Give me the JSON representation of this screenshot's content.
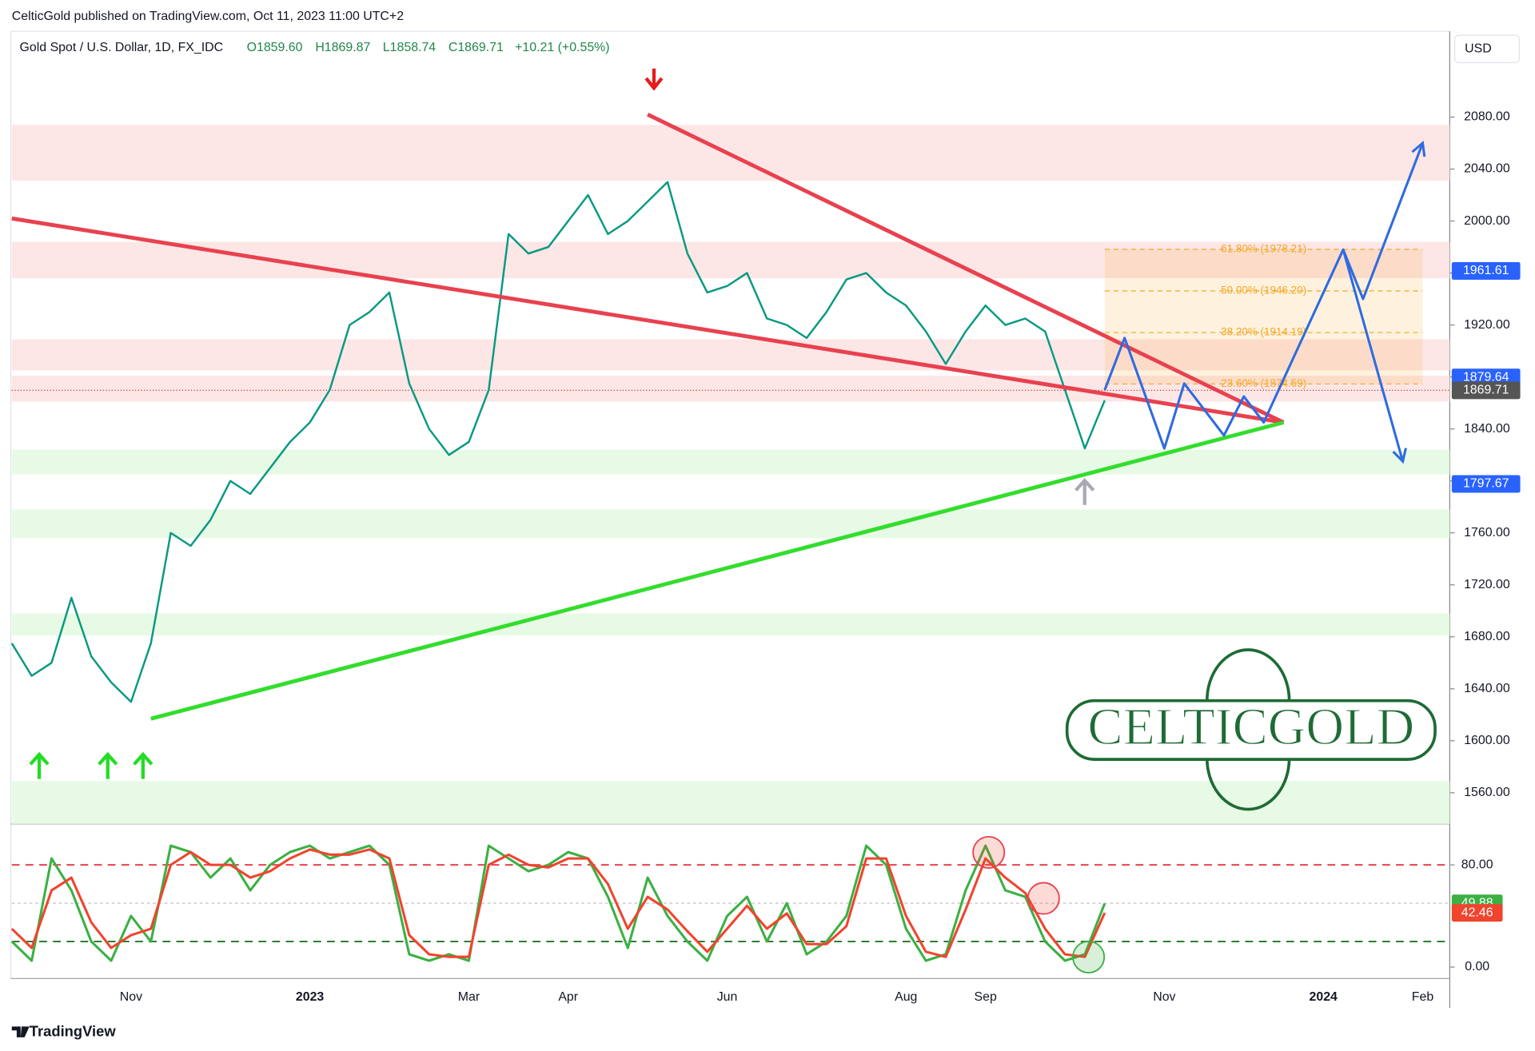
{
  "header": {
    "published": "CelticGold published on TradingView.com, Oct 11, 2023 11:00 UTC+2",
    "symbol": "Gold Spot / U.S. Dollar, 1D, FX_IDC",
    "open": "O1859.60",
    "high": "H1869.87",
    "low": "L1858.74",
    "close": "C1869.71",
    "change": "+10.21 (+0.55%)",
    "currency": "USD"
  },
  "logo": "CELTICGOLD",
  "footer": "TradingView",
  "chart_data": [
    {
      "type": "line",
      "color": "#089981",
      "categories": [
        null,
        null,
        null,
        null,
        null,
        null,
        "Nov",
        null,
        null,
        null,
        null,
        null,
        null,
        null,
        null,
        "2023",
        null,
        null,
        null,
        null,
        null,
        null,
        null,
        "Mar",
        null,
        null,
        null,
        null,
        "Apr",
        null,
        null,
        null,
        null,
        null,
        null,
        null,
        "Jun",
        null,
        null,
        null,
        null,
        null,
        null,
        null,
        null,
        "Aug",
        null,
        null,
        null,
        "Sep",
        null,
        null,
        null,
        null,
        null,
        null,
        null,
        null,
        "Nov",
        null,
        null,
        null,
        null,
        null,
        null,
        null,
        "2024",
        null,
        null,
        null,
        null,
        "Feb",
        null
      ],
      "values": [
        1675,
        1650,
        1660,
        1710,
        1665,
        1645,
        1630,
        1675,
        1760,
        1750,
        1770,
        1800,
        1790,
        1810,
        1830,
        1845,
        1870,
        1920,
        1930,
        1945,
        1875,
        1840,
        1820,
        1830,
        1870,
        1990,
        1975,
        1980,
        2000,
        2020,
        1990,
        2000,
        2015,
        2030,
        1975,
        1945,
        1950,
        1960,
        1925,
        1920,
        1910,
        1930,
        1955,
        1960,
        1945,
        1935,
        1915,
        1890,
        1915,
        1935,
        1920,
        1925,
        1915,
        1870,
        1825,
        1862,
        null,
        null,
        null,
        null,
        null,
        null,
        null,
        null,
        null,
        null,
        null,
        null,
        null,
        null,
        null,
        null,
        null
      ],
      "ylim": [
        1536,
        2146
      ],
      "yticks": [
        {
          "value": 1560,
          "label": "1560.00"
        },
        {
          "value": 1600,
          "label": "1600.00"
        },
        {
          "value": 1640,
          "label": "1640.00"
        },
        {
          "value": 1680,
          "label": "1680.00"
        },
        {
          "value": 1720,
          "label": "1720.00"
        },
        {
          "value": 1760,
          "label": "1760.00"
        },
        {
          "value": 1800,
          "label": "1800.00"
        },
        {
          "value": 1840,
          "label": "1840.00"
        },
        {
          "value": 1880,
          "label": "1880.00"
        },
        {
          "value": 1920,
          "label": "1920.00"
        },
        {
          "value": 1960,
          "label": "1960.00"
        },
        {
          "value": 2000,
          "label": "2000.00"
        },
        {
          "value": 2040,
          "label": "2040.00"
        },
        {
          "value": 2080,
          "label": "2080.00"
        }
      ],
      "zones": [
        {
          "range": [
            2031,
            2074
          ],
          "color": "#fde2e2"
        },
        {
          "range": [
            1956,
            1984
          ],
          "color": "#fde2e2"
        },
        {
          "range": [
            1885,
            1909
          ],
          "color": "#fde2e2"
        },
        {
          "range": [
            1861,
            1881
          ],
          "color": "#fde2e2"
        },
        {
          "range": [
            1805,
            1824
          ],
          "color": "#e3f9e0"
        },
        {
          "range": [
            1756,
            1778
          ],
          "color": "#e3f9e0"
        },
        {
          "range": [
            1681,
            1698
          ],
          "color": "#e3f9e0"
        },
        {
          "range": [
            1536,
            1569
          ],
          "color": "#e3f9e0"
        }
      ],
      "trendlines": [
        {
          "color": "#e8414f",
          "x": [
            32,
            64
          ],
          "values": [
            2082,
            1845
          ]
        },
        {
          "color": "#e8414f",
          "x": [
            0,
            64
          ],
          "values": [
            2002,
            1845
          ]
        },
        {
          "color": "#33dd2d",
          "x": [
            7,
            64
          ],
          "values": [
            1617,
            1845
          ]
        }
      ],
      "projections": [
        {
          "color": "#2f6be0",
          "x": [
            55,
            56,
            58,
            59,
            61,
            62,
            63,
            67,
            68,
            71
          ],
          "values": [
            1870,
            1910,
            1825,
            1875,
            1835,
            1865,
            1845,
            1978,
            1940,
            2060
          ]
        },
        {
          "color": "#2f6be0",
          "x": [
            67,
            70
          ],
          "values": [
            1978,
            1815
          ]
        }
      ],
      "fib": {
        "x": [
          55,
          71
        ],
        "color": "#f5a623",
        "levels": [
          {
            "value": 1978.21,
            "label": "61.80% (1978.21)"
          },
          {
            "value": 1946.2,
            "label": "50.00% (1946.20)"
          },
          {
            "value": 1914.19,
            "label": "38.20% (1914.19)"
          },
          {
            "value": 1874.59,
            "label": "23.60% (1874.59)"
          }
        ]
      },
      "last_price": 1869.71,
      "price_labels": [
        {
          "value": 1961.61,
          "color": "#2962ff"
        },
        {
          "value": 1879.64,
          "color": "#2962ff"
        },
        {
          "value": 1869.71,
          "color": "#555555"
        },
        {
          "value": 1797.67,
          "color": "#2962ff"
        }
      ]
    },
    {
      "type": "line",
      "series": [
        {
          "color": "#3cb043",
          "values": [
            20,
            5,
            85,
            60,
            20,
            5,
            40,
            20,
            95,
            90,
            70,
            85,
            60,
            80,
            90,
            95,
            85,
            90,
            95,
            80,
            10,
            5,
            10,
            5,
            95,
            85,
            75,
            80,
            90,
            85,
            55,
            15,
            70,
            40,
            20,
            5,
            40,
            55,
            20,
            50,
            10,
            20,
            40,
            95,
            80,
            30,
            5,
            10,
            60,
            95,
            60,
            55,
            20,
            5,
            10,
            49.88,
            null,
            null,
            null,
            null,
            null,
            null,
            null,
            null,
            null,
            null,
            null,
            null,
            null,
            null,
            null,
            null,
            null
          ]
        },
        {
          "color": "#f0442e",
          "values": [
            30,
            15,
            60,
            70,
            35,
            15,
            25,
            30,
            80,
            90,
            80,
            80,
            70,
            75,
            85,
            92,
            88,
            88,
            92,
            85,
            25,
            10,
            8,
            8,
            80,
            88,
            80,
            78,
            85,
            85,
            65,
            30,
            55,
            45,
            28,
            12,
            30,
            48,
            30,
            42,
            18,
            18,
            32,
            85,
            85,
            40,
            12,
            8,
            45,
            85,
            70,
            58,
            30,
            10,
            8,
            42.46,
            null,
            null,
            null,
            null,
            null,
            null,
            null,
            null,
            null,
            null,
            null,
            null,
            null,
            null,
            null,
            null,
            null
          ]
        }
      ],
      "ylim": [
        -9,
        112
      ],
      "yticks": [
        {
          "value": 0,
          "label": "0.00"
        },
        {
          "value": 80,
          "label": "80.00"
        }
      ],
      "levels": [
        {
          "value": 80,
          "color": "#e8414f"
        },
        {
          "value": 50,
          "color": "#bbbbbb"
        },
        {
          "value": 20,
          "color": "#2e7d32"
        }
      ],
      "value_labels": [
        {
          "value": 49.88,
          "color": "#3cb043"
        },
        {
          "value": 42.46,
          "color": "#f0442e"
        }
      ]
    }
  ]
}
